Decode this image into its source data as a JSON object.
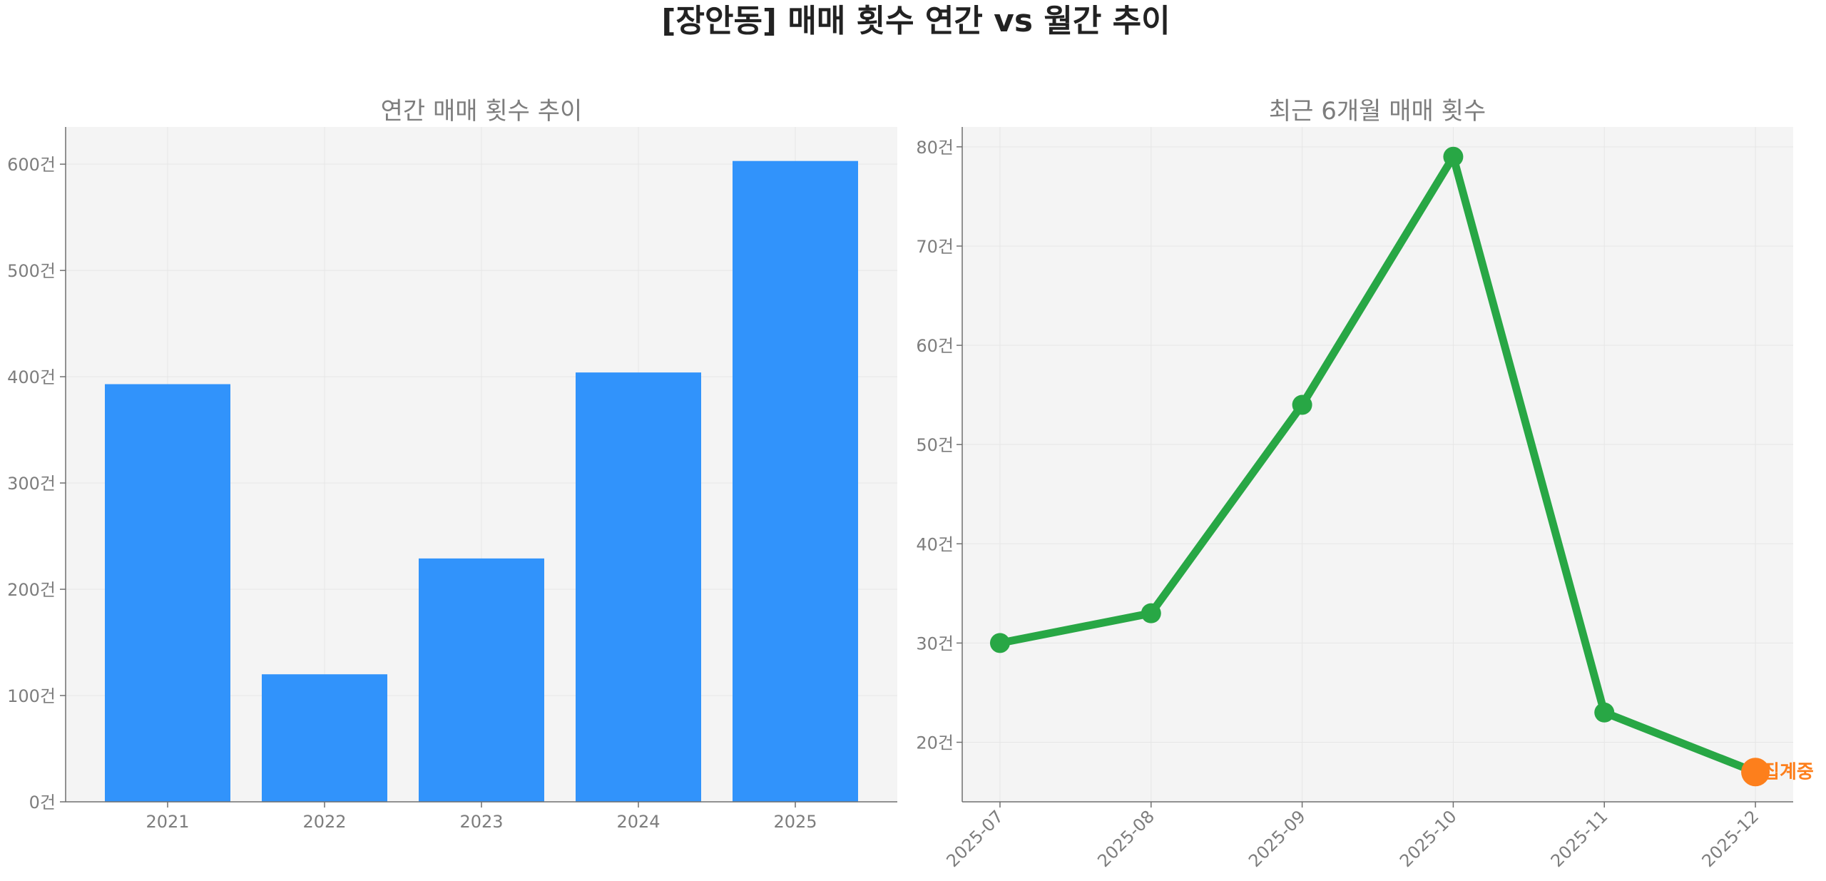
{
  "title": "[장안동] 매매 횟수 연간 vs 월간 추이",
  "colors": {
    "bar": "#3193fb",
    "line": "#28a745",
    "highlight": "#fd7f1c",
    "plot_bg": "#f4f4f4",
    "grid": "#e6e6e6",
    "axis": "#6f6f6f"
  },
  "chart_data": [
    {
      "type": "bar",
      "title": "연간 매매 횟수 추이",
      "categories": [
        "2021",
        "2022",
        "2023",
        "2024",
        "2025"
      ],
      "values": [
        393,
        120,
        229,
        404,
        603
      ],
      "ylim": [
        0,
        635
      ],
      "yticks": [
        0,
        100,
        200,
        300,
        400,
        500,
        600
      ],
      "tick_suffix": "건",
      "grid": true
    },
    {
      "type": "line",
      "title": "최근 6개월 매매 횟수",
      "x": [
        "2025-07",
        "2025-08",
        "2025-09",
        "2025-10",
        "2025-11",
        "2025-12"
      ],
      "values": [
        30,
        33,
        54,
        79,
        23,
        17
      ],
      "ylim": [
        14,
        82
      ],
      "yticks": [
        20,
        30,
        40,
        50,
        60,
        70,
        80
      ],
      "tick_suffix": "건",
      "grid": true,
      "highlight_index": 5,
      "annotation": "집계중"
    }
  ]
}
